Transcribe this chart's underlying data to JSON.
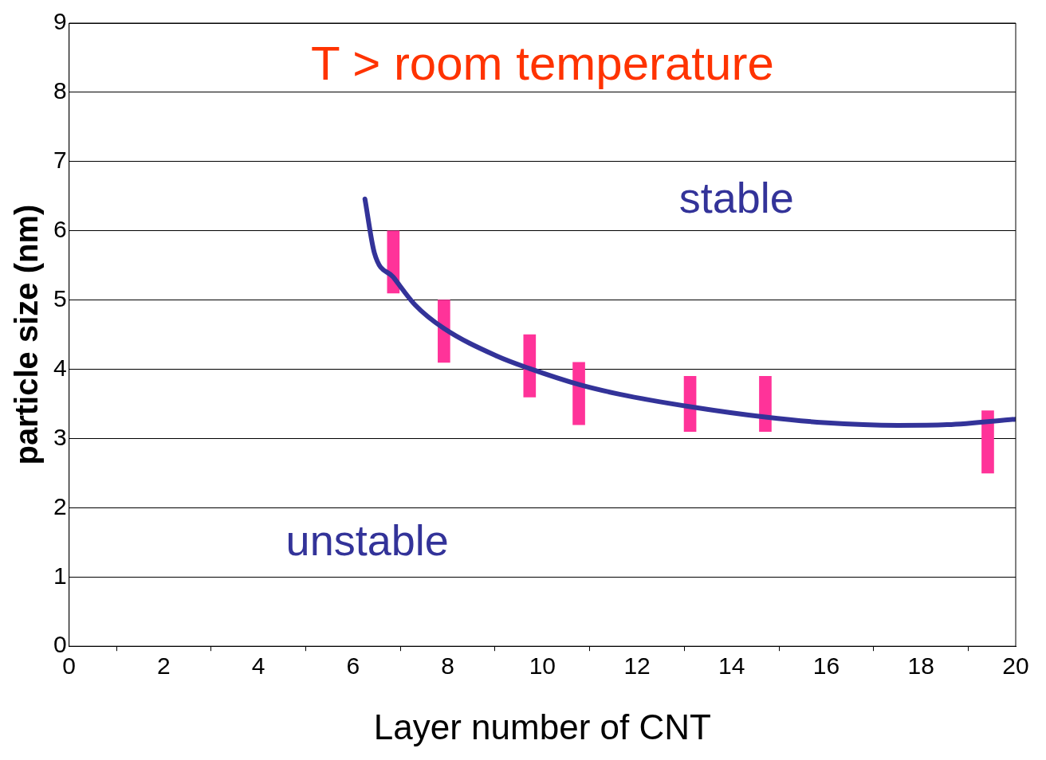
{
  "chart_data": {
    "type": "bar",
    "xlabel": "Layer number of CNT",
    "ylabel": "particle size (nm)",
    "xlim": [
      0,
      20
    ],
    "xticks": [
      0,
      2,
      4,
      6,
      8,
      10,
      12,
      14,
      16,
      18,
      20
    ],
    "ylim": [
      0,
      9
    ],
    "yticks": [
      0,
      1,
      2,
      3,
      4,
      5,
      6,
      7,
      8,
      9
    ],
    "grid": "y",
    "legend": false,
    "annotations": [
      "T > room temperature",
      "stable",
      "unstable"
    ],
    "series": [
      {
        "color": "#ff3399",
        "x": [
          6.85,
          7.92,
          9.73,
          10.77,
          13.12,
          14.71,
          19.41
        ],
        "base": [
          5.1,
          4.1,
          3.6,
          3.2,
          3.1,
          3.1,
          2.5
        ],
        "values": [
          0.9,
          0.9,
          0.9,
          0.9,
          0.8,
          0.8,
          0.9
        ]
      },
      {
        "type": "line",
        "color": "#333399",
        "marker": "none",
        "x": [
          6.25,
          6.45,
          6.85,
          7.31,
          7.92,
          9.04,
          9.73,
          10.77,
          11.63,
          13.12,
          14.71,
          15.95,
          17.51,
          18.55,
          20
        ],
        "values": [
          6.46,
          5.68,
          5.33,
          4.93,
          4.59,
          4.19,
          4.01,
          3.78,
          3.64,
          3.46,
          3.31,
          3.23,
          3.19,
          3.2,
          3.28
        ]
      }
    ]
  }
}
